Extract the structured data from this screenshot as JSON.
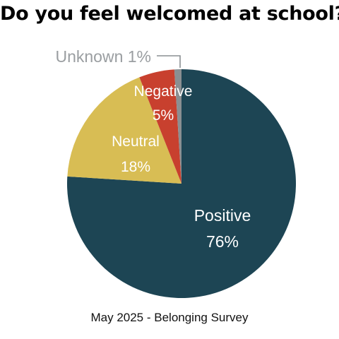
{
  "title": "Do you feel welcomed at school?",
  "subtitle": "May 2025 - Belonging Survey",
  "chart_data": {
    "type": "pie",
    "start_angle_deg": 0,
    "direction": "clockwise",
    "slices": [
      {
        "label": "Positive",
        "value": 76,
        "value_label": "76%",
        "color": "#1d4554"
      },
      {
        "label": "Neutral",
        "value": 18,
        "value_label": "18%",
        "color": "#d8bd54"
      },
      {
        "label": "Negative",
        "value": 5,
        "value_label": "5%",
        "color": "#c8402e"
      },
      {
        "label": "Unknown",
        "value": 1,
        "value_label": "1%",
        "color": "#8a8f92"
      }
    ],
    "callout": {
      "text": "Unknown 1%"
    }
  }
}
